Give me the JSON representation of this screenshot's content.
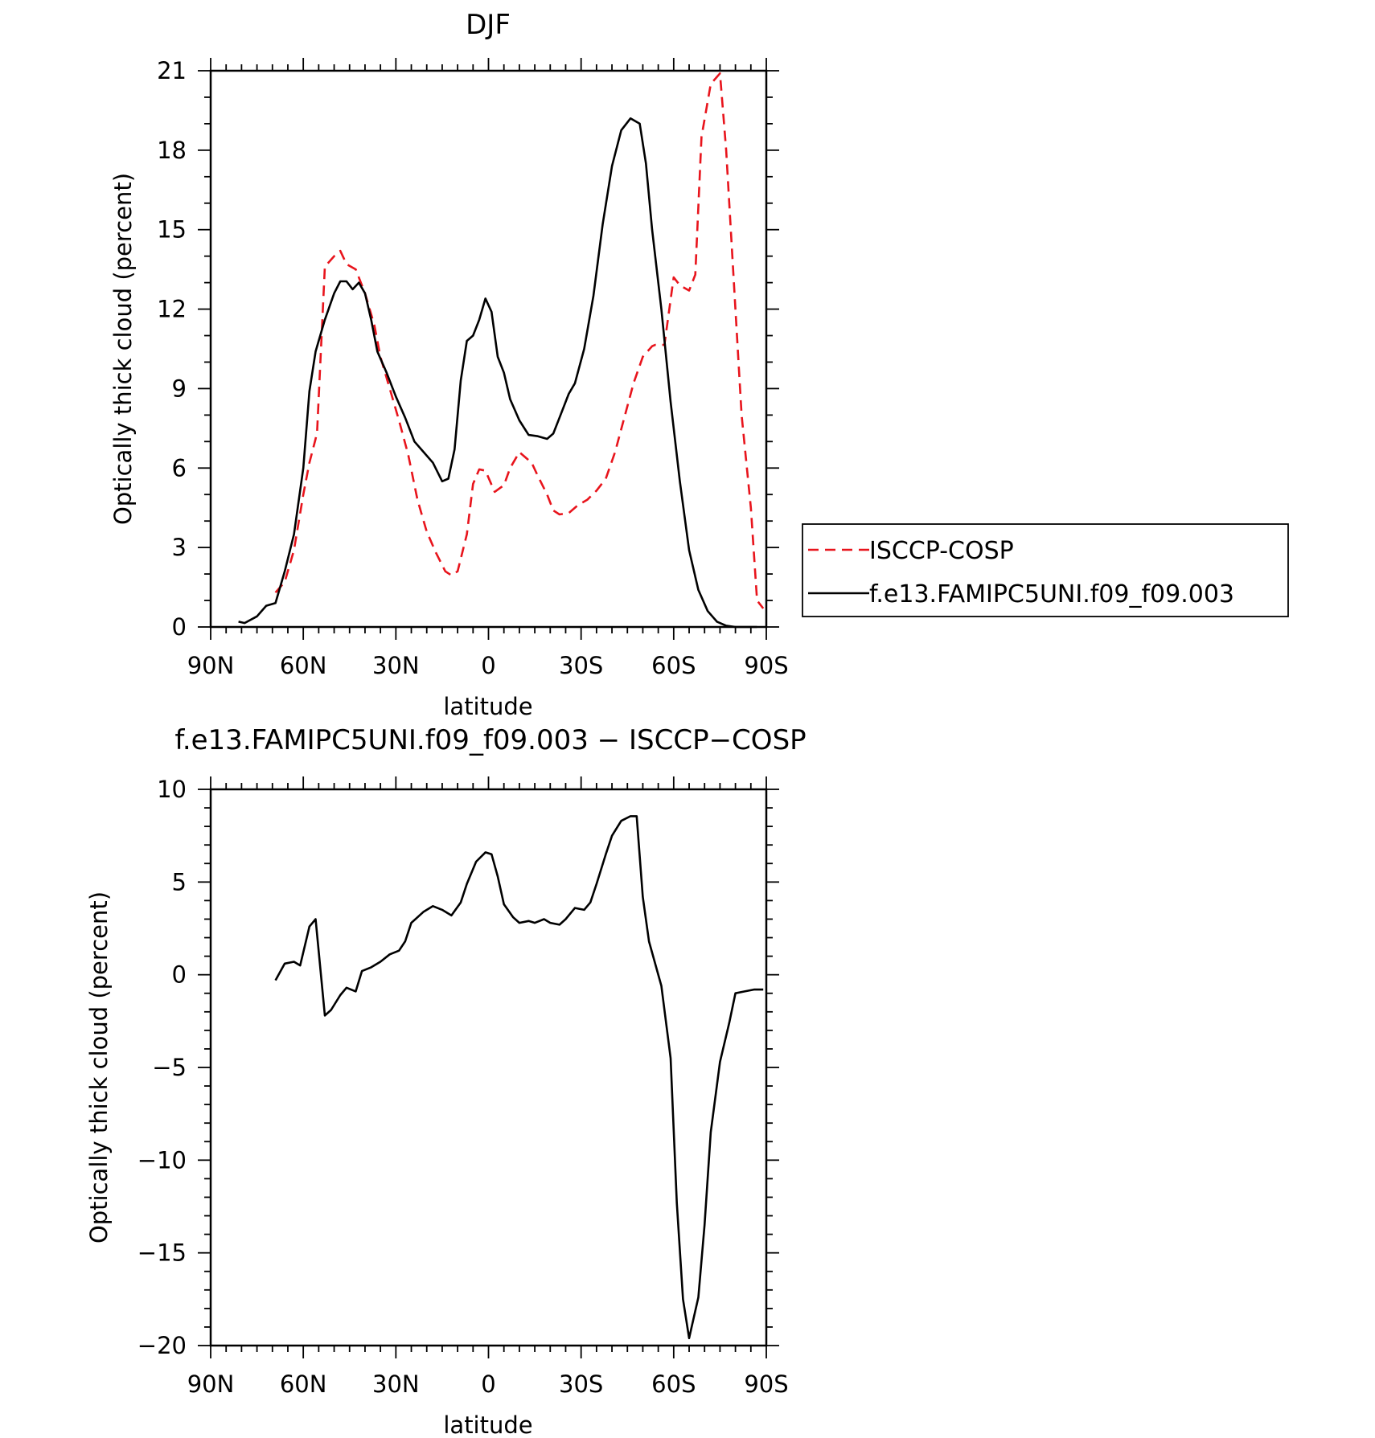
{
  "chart_data": [
    {
      "type": "line",
      "title": "DJF",
      "xlabel": "latitude",
      "ylabel": "Optically thick cloud (percent)",
      "xlim": [
        90,
        -90
      ],
      "ylim": [
        0,
        21
      ],
      "x_ticks": [
        90,
        60,
        30,
        0,
        -30,
        -60,
        -90
      ],
      "x_tick_labels": [
        "90N",
        "60N",
        "30N",
        "0",
        "30S",
        "60S",
        "90S"
      ],
      "y_ticks": [
        0,
        3,
        6,
        9,
        12,
        15,
        18,
        21
      ],
      "y_tick_labels": [
        "0",
        "3",
        "6",
        "9",
        "12",
        "15",
        "18",
        "21"
      ],
      "grid": false,
      "legend_position": "right",
      "series": [
        {
          "name": "ISCCP-COSP",
          "color": "#e8141c",
          "style": "dashed",
          "x": [
            69,
            66,
            63,
            60,
            58,
            56,
            55.5,
            53,
            50,
            48,
            46,
            43,
            40,
            37,
            35,
            32,
            29,
            26,
            23,
            20,
            17,
            14,
            12,
            10,
            7,
            5,
            3,
            1,
            -2,
            -5,
            -7,
            -10,
            -14,
            -16,
            -19,
            -21,
            -23,
            -26,
            -29,
            -32,
            -35,
            -38,
            -41,
            -44,
            -47,
            -50,
            -53,
            -54,
            -57,
            -60,
            -62,
            -65,
            -67,
            -69,
            -72,
            -75,
            -77,
            -80,
            -82,
            -85,
            -87,
            -89
          ],
          "y": [
            1.3,
            1.7,
            2.9,
            5.0,
            6.2,
            7.1,
            7.4,
            13.6,
            14.0,
            14.2,
            13.7,
            13.5,
            12.6,
            11.4,
            10.2,
            9.0,
            7.8,
            6.5,
            4.8,
            3.6,
            2.8,
            2.1,
            1.95,
            2.1,
            3.5,
            5.4,
            5.95,
            5.9,
            5.1,
            5.35,
            6.0,
            6.6,
            6.2,
            5.7,
            5.0,
            4.4,
            4.25,
            4.3,
            4.6,
            4.8,
            5.15,
            5.6,
            6.6,
            7.9,
            9.2,
            10.2,
            10.6,
            10.65,
            10.65,
            13.2,
            12.9,
            12.7,
            13.3,
            18.5,
            20.5,
            20.9,
            18.0,
            12.0,
            8.0,
            4.5,
            1.0,
            0.7
          ]
        },
        {
          "name": "f.e13.FAMIPC5UNI.f09_f09.003",
          "color": "#000000",
          "style": "solid",
          "x": [
            81,
            79,
            75,
            72,
            69,
            66,
            63,
            60,
            58,
            56,
            53,
            50,
            48,
            46,
            44,
            42,
            40,
            38,
            36,
            33,
            30,
            27,
            24,
            21,
            18,
            15,
            13,
            11,
            9,
            7,
            5,
            3,
            1,
            -1,
            -3,
            -5,
            -7,
            -10,
            -13,
            -16,
            -19,
            -21,
            -23,
            -26,
            -28,
            -31,
            -34,
            -37,
            -40,
            -43,
            -46,
            -49,
            -51,
            -53,
            -56,
            -59,
            -62,
            -65,
            -68,
            -71,
            -74,
            -77,
            -80,
            -83,
            -87
          ],
          "y": [
            0.2,
            0.15,
            0.4,
            0.8,
            0.9,
            2.1,
            3.5,
            6.0,
            8.9,
            10.4,
            11.6,
            12.6,
            13.05,
            13.05,
            12.75,
            13.0,
            12.6,
            11.6,
            10.4,
            9.6,
            8.7,
            7.9,
            7.0,
            6.6,
            6.2,
            5.5,
            5.6,
            6.7,
            9.3,
            10.8,
            11.0,
            11.6,
            12.4,
            11.9,
            10.2,
            9.6,
            8.6,
            7.8,
            7.25,
            7.2,
            7.1,
            7.3,
            7.9,
            8.8,
            9.2,
            10.5,
            12.5,
            15.2,
            17.4,
            18.75,
            19.2,
            19.0,
            17.5,
            15.0,
            12.0,
            8.5,
            5.5,
            2.9,
            1.4,
            0.6,
            0.2,
            0.05,
            0.0,
            0.0,
            0.0
          ]
        }
      ]
    },
    {
      "type": "line",
      "title": "f.e13.FAMIPC5UNI.f09_f09.003 − ISCCP−COSP",
      "xlabel": "latitude",
      "ylabel": "Optically thick cloud (percent)",
      "xlim": [
        90,
        -90
      ],
      "ylim": [
        -20,
        10
      ],
      "x_ticks": [
        90,
        60,
        30,
        0,
        -30,
        -60,
        -90
      ],
      "x_tick_labels": [
        "90N",
        "60N",
        "30N",
        "0",
        "30S",
        "60S",
        "90S"
      ],
      "y_ticks": [
        -20,
        -15,
        -10,
        -5,
        0,
        5,
        10
      ],
      "y_tick_labels": [
        "−20",
        "−15",
        "−10",
        "−5",
        "0",
        "5",
        "10"
      ],
      "grid": false,
      "series": [
        {
          "color": "#000000",
          "style": "solid",
          "x": [
            69,
            66,
            63,
            61,
            58,
            56,
            53,
            51,
            48,
            46,
            43,
            41,
            38,
            35,
            32,
            29,
            27,
            25,
            23,
            21,
            18,
            15,
            12,
            9,
            7,
            4,
            1,
            -1,
            -3,
            -5,
            -8,
            -10,
            -13,
            -15,
            -18,
            -20,
            -23,
            -25,
            -28,
            -31,
            -33,
            -35,
            -38,
            -40,
            -43,
            -46,
            -48,
            -50,
            -52,
            -56,
            -59,
            -61,
            -63,
            -65,
            -68,
            -70,
            -72,
            -75,
            -78,
            -80,
            -83,
            -86,
            -89
          ],
          "y": [
            -0.3,
            0.6,
            0.7,
            0.5,
            2.6,
            3.0,
            -2.2,
            -1.9,
            -1.1,
            -0.7,
            -0.9,
            0.2,
            0.4,
            0.7,
            1.1,
            1.3,
            1.8,
            2.8,
            3.1,
            3.4,
            3.7,
            3.5,
            3.2,
            3.9,
            4.9,
            6.1,
            6.6,
            6.5,
            5.3,
            3.8,
            3.1,
            2.8,
            2.9,
            2.8,
            3.0,
            2.8,
            2.7,
            3.0,
            3.6,
            3.5,
            3.9,
            4.9,
            6.5,
            7.5,
            8.3,
            8.55,
            8.55,
            4.2,
            1.8,
            -0.6,
            -4.5,
            -12.3,
            -17.5,
            -19.6,
            -17.4,
            -13.5,
            -8.5,
            -4.7,
            -2.6,
            -1.0,
            -0.9,
            -0.8,
            -0.8
          ]
        }
      ]
    }
  ]
}
